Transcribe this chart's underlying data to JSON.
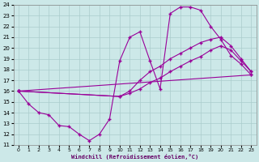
{
  "xlabel": "Windchill (Refroidissement éolien,°C)",
  "xlim": [
    -0.5,
    23.5
  ],
  "ylim": [
    11,
    24
  ],
  "xticks": [
    0,
    1,
    2,
    3,
    4,
    5,
    6,
    7,
    8,
    9,
    10,
    11,
    12,
    13,
    14,
    15,
    16,
    17,
    18,
    19,
    20,
    21,
    22,
    23
  ],
  "yticks": [
    11,
    12,
    13,
    14,
    15,
    16,
    17,
    18,
    19,
    20,
    21,
    22,
    23,
    24
  ],
  "bg_color": "#cce8e8",
  "line_color": "#990099",
  "line1_x": [
    0,
    1,
    2,
    3,
    4,
    5,
    6,
    7,
    8,
    9,
    10,
    11,
    12,
    13,
    14,
    15,
    16,
    17,
    18,
    19,
    20,
    21,
    22,
    23
  ],
  "line1_y": [
    16,
    14.8,
    14,
    13.8,
    12.8,
    12.7,
    12.0,
    11.4,
    12.0,
    13.4,
    18.8,
    21.0,
    21.5,
    18.8,
    16.2,
    23.2,
    23.8,
    23.8,
    23.5,
    22.0,
    20.8,
    19.3,
    18.5,
    17.5
  ],
  "line2_x": [
    0,
    10,
    11,
    12,
    13,
    14,
    15,
    16,
    17,
    18,
    19,
    20,
    21,
    22,
    23
  ],
  "line2_y": [
    16,
    15.5,
    16.0,
    17.0,
    17.8,
    18.3,
    19.0,
    19.5,
    20.0,
    20.5,
    20.8,
    21.0,
    20.2,
    19.0,
    17.8
  ],
  "line3_x": [
    0,
    10,
    11,
    12,
    13,
    14,
    15,
    16,
    17,
    18,
    19,
    20,
    21,
    22,
    23
  ],
  "line3_y": [
    16,
    15.5,
    15.8,
    16.2,
    16.8,
    17.2,
    17.8,
    18.3,
    18.8,
    19.2,
    19.8,
    20.2,
    19.8,
    18.8,
    17.8
  ],
  "line4_x": [
    0,
    23
  ],
  "line4_y": [
    16,
    17.5
  ]
}
